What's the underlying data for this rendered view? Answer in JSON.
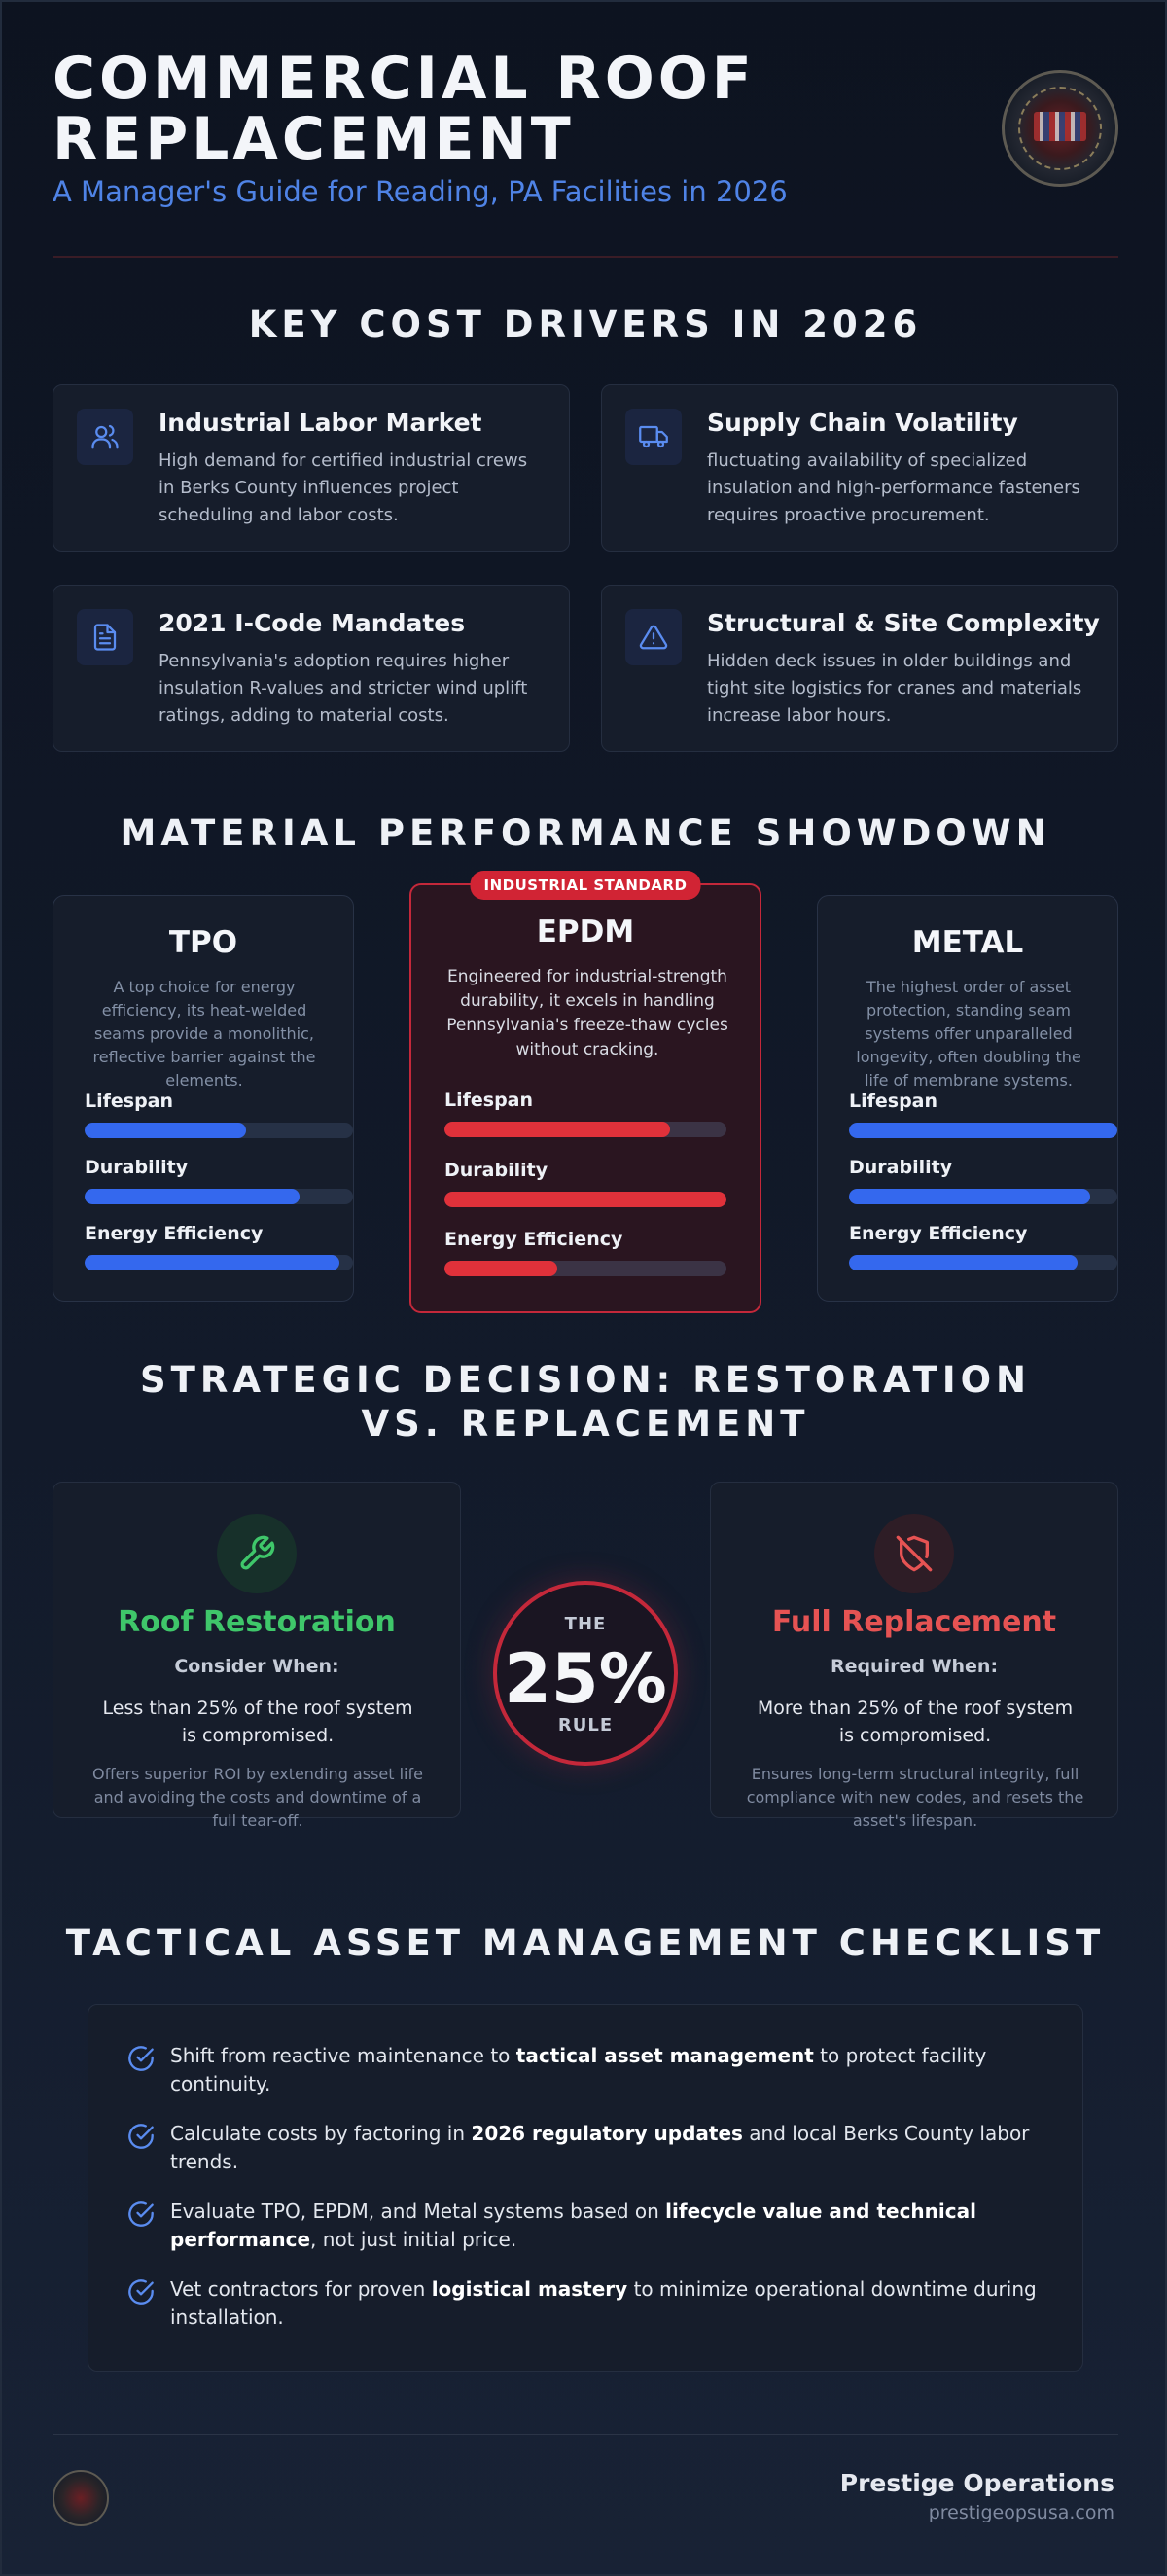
{
  "header": {
    "title": "COMMERCIAL ROOF REPLACEMENT",
    "subtitle": "A Manager's Guide for Reading, PA Facilities in 2026"
  },
  "cost_drivers": {
    "heading": "KEY COST DRIVERS IN 2026",
    "items": [
      {
        "title": "Industrial Labor Market",
        "description": "High demand for certified industrial crews in Berks County influences project scheduling and labor costs.",
        "icon": "users-icon"
      },
      {
        "title": "Supply Chain Volatility",
        "description": "fluctuating availability of specialized insulation and high-performance fasteners requires proactive procurement.",
        "icon": "truck-icon"
      },
      {
        "title": "2021 I-Code Mandates",
        "description": "Pennsylvania's adoption requires higher insulation R-values and stricter wind uplift ratings, adding to material costs.",
        "icon": "document-icon"
      },
      {
        "title": "Structural & Site Complexity",
        "description": "Hidden deck issues in older buildings and tight site logistics for cranes and materials increase labor hours.",
        "icon": "warning-icon"
      }
    ]
  },
  "materials": {
    "heading": "MATERIAL PERFORMANCE SHOWDOWN",
    "badge": "INDUSTRIAL STANDARD",
    "metric_labels": [
      "Lifespan",
      "Durability",
      "Energy Efficiency"
    ],
    "items": [
      {
        "name": "TPO",
        "description": "A top choice for energy efficiency, its heat-welded seams provide a monolithic, reflective barrier against the elements.",
        "levels_percent": [
          60,
          80,
          95
        ]
      },
      {
        "name": "EPDM",
        "description": "Engineered for industrial-strength durability, it excels in handling Pennsylvania's freeze-thaw cycles without cracking.",
        "levels_percent": [
          80,
          100,
          40
        ]
      },
      {
        "name": "METAL",
        "description": "The highest order of asset protection, standing seam systems offer unparalleled longevity, often doubling the life of membrane systems.",
        "levels_percent": [
          100,
          90,
          85
        ]
      }
    ],
    "colors": {
      "standard_bar": "#3468ee",
      "featured_bar": "#e0313a"
    }
  },
  "decision": {
    "heading": "STRATEGIC DECISION: RESTORATION VS. REPLACEMENT",
    "restoration": {
      "title": "Roof Restoration",
      "condition_label": "Consider When:",
      "condition": "Less than 25% of the roof system is compromised.",
      "note": "Offers superior ROI by extending asset life and avoiding the costs and downtime of a full tear-off.",
      "icon": "wrench-icon",
      "color": "#3fc76a"
    },
    "rule": {
      "top": "THE",
      "value": "25%",
      "bottom": "RULE"
    },
    "replacement": {
      "title": "Full Replacement",
      "condition_label": "Required When:",
      "condition": "More than 25% of the roof system is compromised.",
      "note": "Ensures long-term structural integrity, full compliance with new codes, and resets the asset's lifespan.",
      "icon": "shield-off-icon",
      "color": "#e65353"
    }
  },
  "checklist": {
    "heading": "TACTICAL ASSET MANAGEMENT CHECKLIST",
    "items": [
      {
        "before": "Shift from reactive maintenance to ",
        "bold": "tactical asset management",
        "after": " to protect facility continuity."
      },
      {
        "before": "Calculate costs by factoring in ",
        "bold": "2026 regulatory updates",
        "after": " and local Berks County labor trends."
      },
      {
        "before": "Evaluate TPO, EPDM, and Metal systems based on ",
        "bold": "lifecycle value and technical performance",
        "after": ", not just initial price."
      },
      {
        "before": "Vet contractors for proven ",
        "bold": "logistical mastery",
        "after": " to minimize operational downtime during installation."
      }
    ]
  },
  "footer": {
    "brand": "Prestige Operations",
    "url": "prestigeopsusa.com"
  }
}
